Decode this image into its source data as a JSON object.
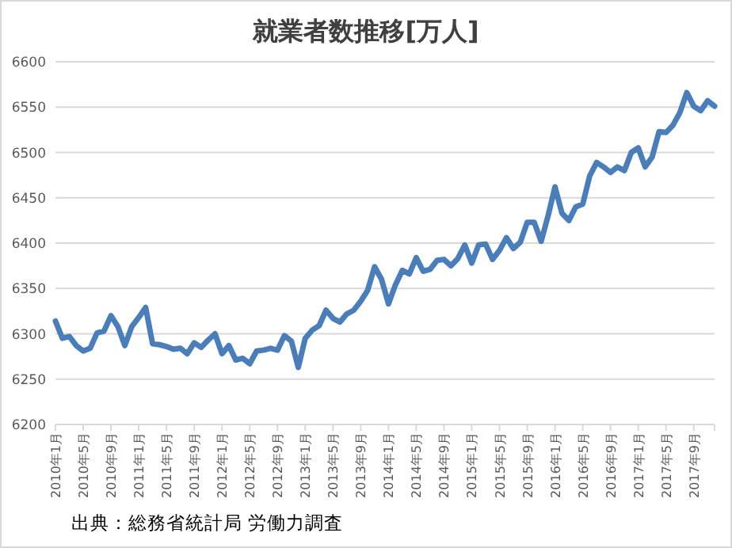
{
  "chart_data": {
    "type": "line",
    "title": "就業者数推移[万人]",
    "categories": [
      "2010年1月",
      null,
      null,
      null,
      "2010年5月",
      null,
      null,
      null,
      "2010年9月",
      null,
      null,
      null,
      "2011年1月",
      null,
      null,
      null,
      "2011年5月",
      null,
      null,
      null,
      "2011年9月",
      null,
      null,
      null,
      "2012年1月",
      null,
      null,
      null,
      "2012年5月",
      null,
      null,
      null,
      "2012年9月",
      null,
      null,
      null,
      "2013年1月",
      null,
      null,
      null,
      "2013年5月",
      null,
      null,
      null,
      "2013年9月",
      null,
      null,
      null,
      "2014年1月",
      null,
      null,
      null,
      "2014年5月",
      null,
      null,
      null,
      "2014年9月",
      null,
      null,
      null,
      "2015年1月",
      null,
      null,
      null,
      "2015年5月",
      null,
      null,
      null,
      "2015年9月",
      null,
      null,
      null,
      "2016年1月",
      null,
      null,
      null,
      "2016年5月",
      null,
      null,
      null,
      "2016年9月",
      null,
      null,
      null,
      "2017年1月",
      null,
      null,
      null,
      "2017年5月",
      null,
      null,
      null,
      "2017年9月",
      null,
      null,
      null
    ],
    "values": [
      6314,
      6295,
      6297,
      6287,
      6281,
      6284,
      6301,
      6303,
      6320,
      6308,
      6287,
      6308,
      6318,
      6329,
      6289,
      6288,
      6286,
      6283,
      6284,
      6278,
      6290,
      6285,
      6293,
      6300,
      6278,
      6287,
      6271,
      6273,
      6267,
      6281,
      6282,
      6284,
      6282,
      6298,
      6292,
      6263,
      6295,
      6304,
      6309,
      6326,
      6317,
      6313,
      6322,
      6326,
      6336,
      6348,
      6374,
      6360,
      6333,
      6354,
      6370,
      6366,
      6384,
      6369,
      6371,
      6381,
      6382,
      6375,
      6383,
      6398,
      6378,
      6398,
      6399,
      6382,
      6392,
      6406,
      6394,
      6401,
      6423,
      6423,
      6402,
      6430,
      6462,
      6433,
      6425,
      6440,
      6443,
      6474,
      6489,
      6484,
      6478,
      6484,
      6480,
      6500,
      6505,
      6484,
      6495,
      6523,
      6522,
      6530,
      6544,
      6566,
      6551,
      6546,
      6557,
      6551
    ],
    "color": "#4a7ebb",
    "ylim": [
      6200,
      6600
    ],
    "yticks": [
      6200,
      6250,
      6300,
      6350,
      6400,
      6450,
      6500,
      6550,
      6600
    ],
    "grid": "y",
    "annotations": [
      "出典：総務省統計局 労働力調査"
    ]
  }
}
